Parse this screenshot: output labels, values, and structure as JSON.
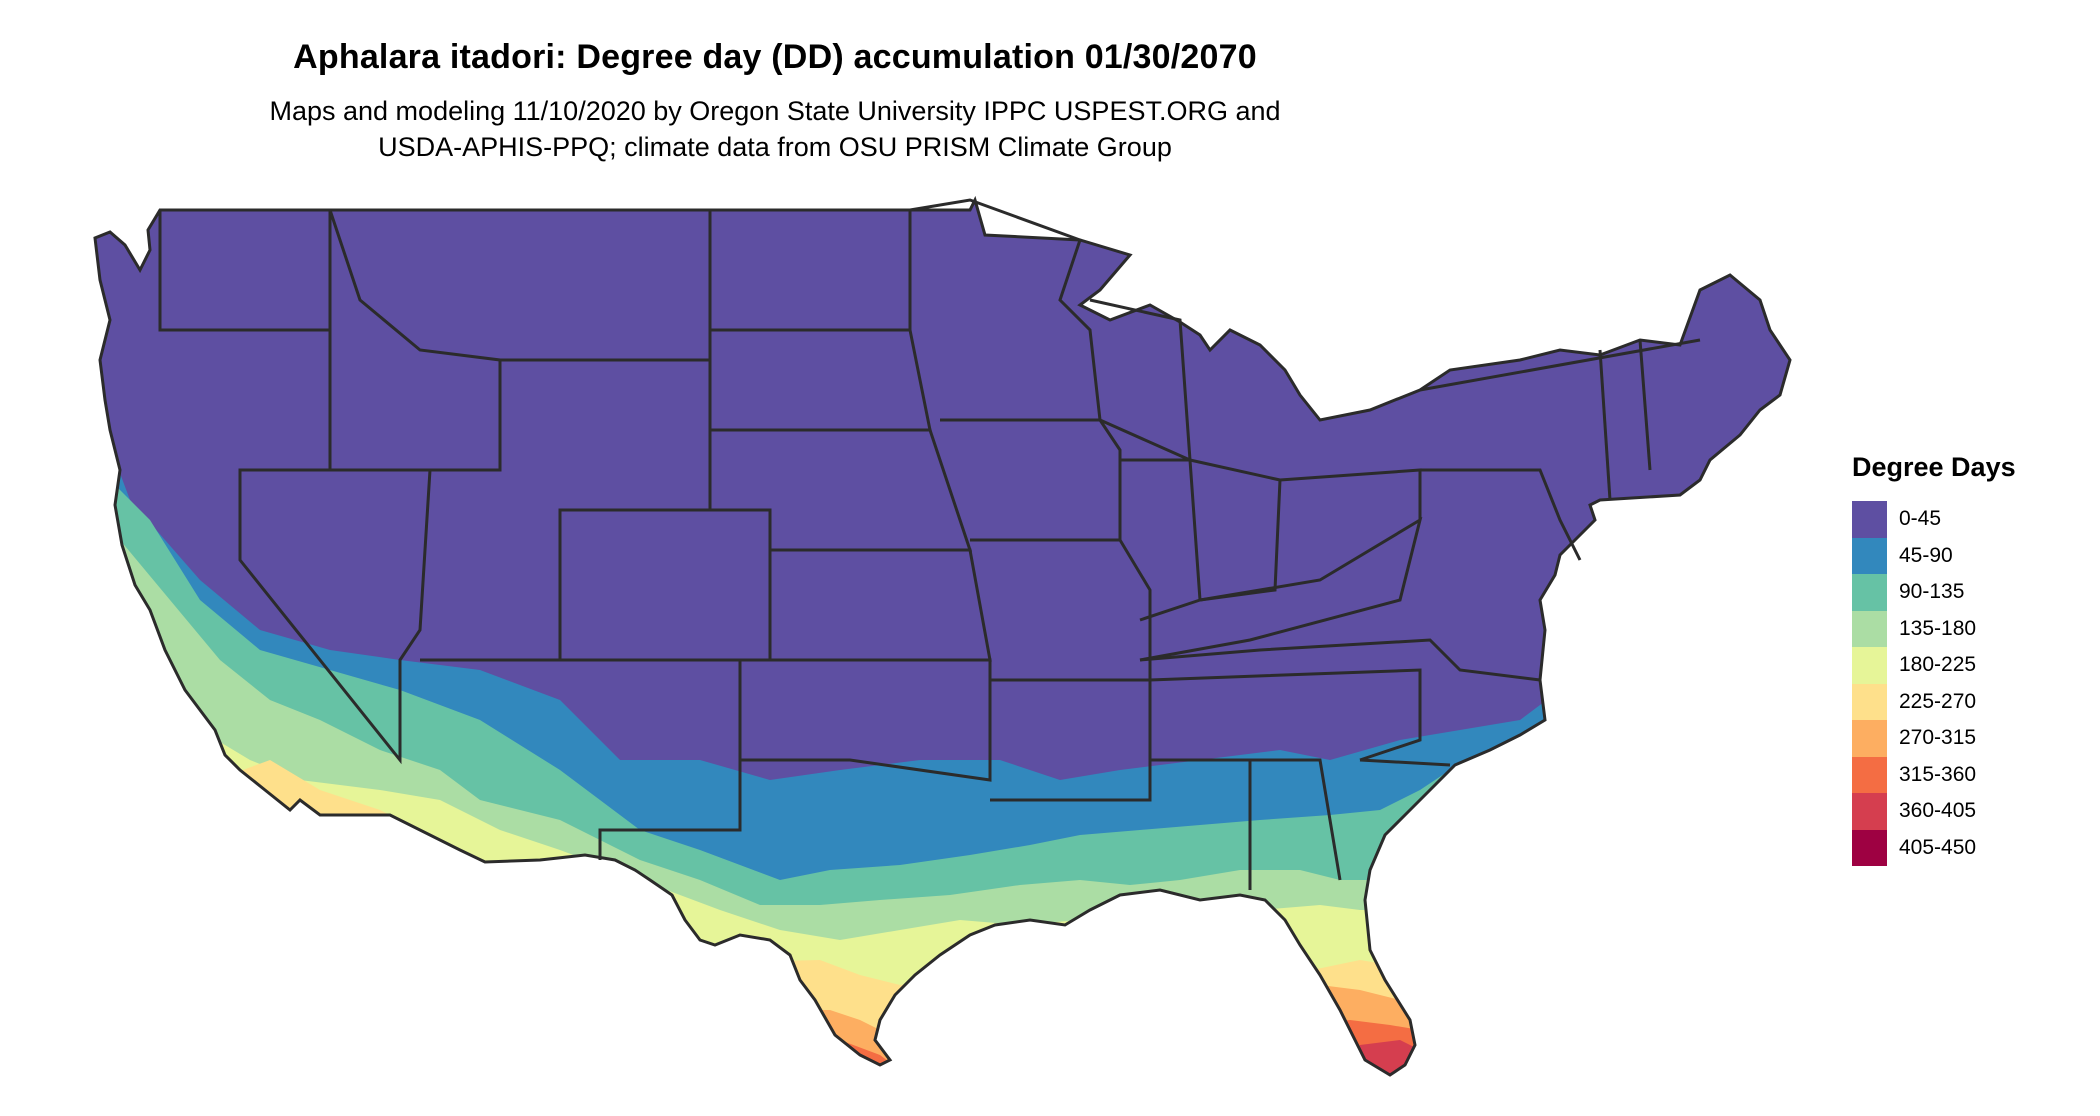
{
  "title": "Aphalara itadori: Degree day (DD) accumulation 01/30/2070",
  "subtitle_line1": "Maps and modeling 11/10/2020 by Oregon State University IPPC USPEST.ORG and",
  "subtitle_line2": "USDA-APHIS-PPQ; climate data from OSU PRISM Climate Group",
  "legend": {
    "title": "Degree Days",
    "items": [
      {
        "label": "0-45",
        "color": "#5e4fa2"
      },
      {
        "label": "45-90",
        "color": "#3288bd"
      },
      {
        "label": "90-135",
        "color": "#66c2a5"
      },
      {
        "label": "135-180",
        "color": "#abdda4"
      },
      {
        "label": "180-225",
        "color": "#e6f598"
      },
      {
        "label": "225-270",
        "color": "#fee08b"
      },
      {
        "label": "270-315",
        "color": "#fdae61"
      },
      {
        "label": "315-360",
        "color": "#f46d43"
      },
      {
        "label": "360-405",
        "color": "#d53e4f"
      },
      {
        "label": "405-450",
        "color": "#9e0142"
      }
    ]
  },
  "map": {
    "region": "contiguous-united-states",
    "boundary_color": "#2b2b2b",
    "zones_by_latitude": "warmer classes toward the southern coasts and southern Florida"
  }
}
